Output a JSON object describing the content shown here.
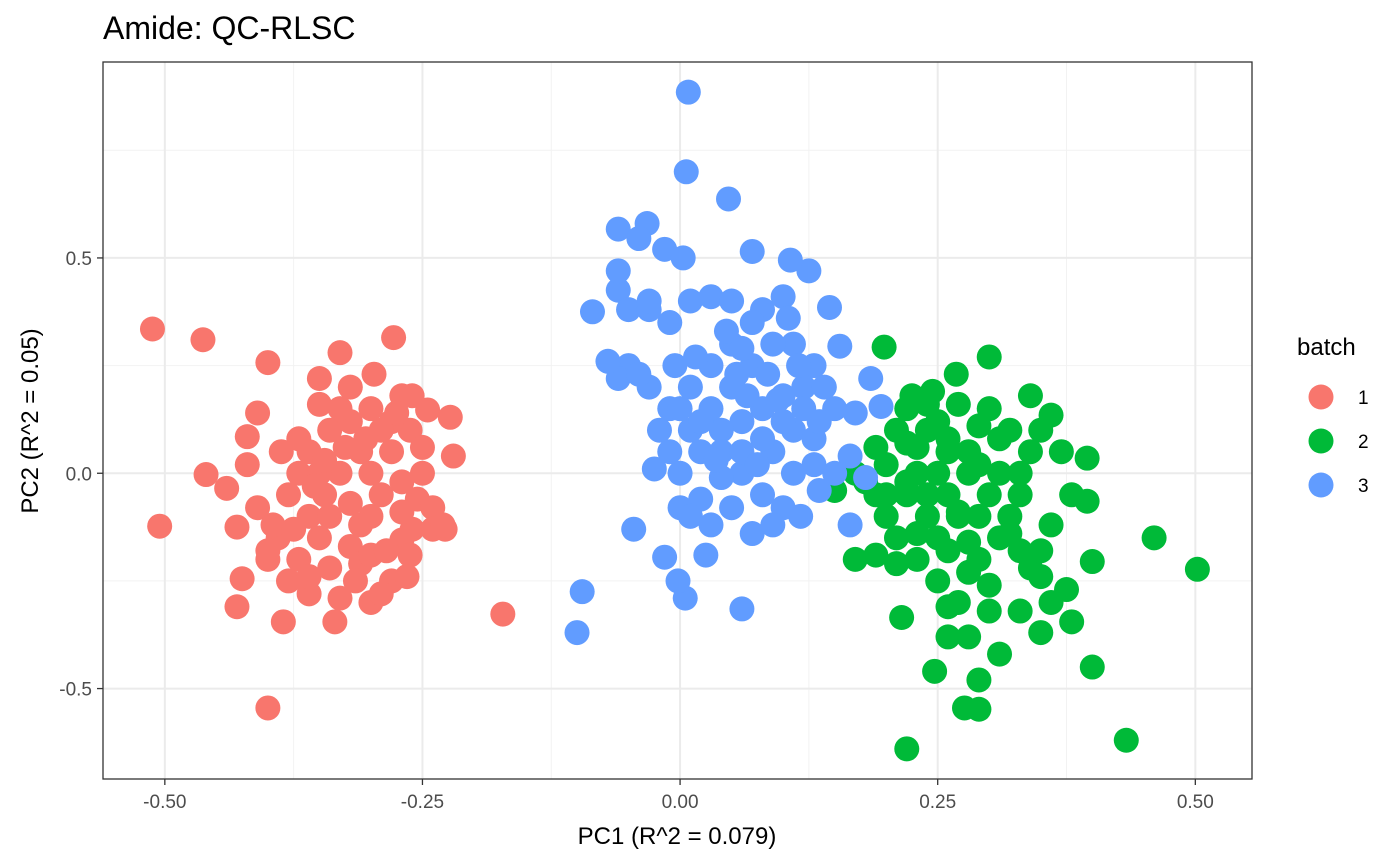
{
  "chart_data": {
    "type": "scatter",
    "title": "Amide: QC-RLSC",
    "xlabel": "PC1 (R^2 = 0.079)",
    "ylabel": "PC2 (R^2 = 0.05)",
    "xlim": [
      -0.56,
      0.555
    ],
    "ylim": [
      -0.71,
      0.955
    ],
    "x_ticks": [
      {
        "value": -0.5,
        "label": "-0.50"
      },
      {
        "value": -0.25,
        "label": "-0.25"
      },
      {
        "value": 0.0,
        "label": "0.00"
      },
      {
        "value": 0.25,
        "label": "0.25"
      },
      {
        "value": 0.5,
        "label": "0.50"
      }
    ],
    "y_ticks": [
      {
        "value": -0.5,
        "label": "-0.5"
      },
      {
        "value": 0.0,
        "label": "0.0"
      },
      {
        "value": 0.5,
        "label": "0.5"
      }
    ],
    "grid": true,
    "legend": {
      "title": "batch",
      "placement": "right"
    },
    "series": [
      {
        "name": "1",
        "color": "#F8766D",
        "points": [
          [
            -0.512,
            0.335
          ],
          [
            -0.463,
            0.31
          ],
          [
            -0.4,
            0.257
          ],
          [
            -0.505,
            -0.123
          ],
          [
            -0.46,
            -0.003
          ],
          [
            -0.4,
            -0.545
          ],
          [
            -0.172,
            -0.327
          ],
          [
            -0.387,
            0.05
          ],
          [
            -0.35,
            0.16
          ],
          [
            -0.33,
            0.28
          ],
          [
            -0.32,
            0.2
          ],
          [
            -0.297,
            0.23
          ],
          [
            -0.278,
            0.315
          ],
          [
            -0.27,
            0.18
          ],
          [
            -0.262,
            0.1
          ],
          [
            -0.245,
            0.147
          ],
          [
            -0.223,
            0.13
          ],
          [
            -0.228,
            -0.13
          ],
          [
            -0.22,
            0.04
          ],
          [
            -0.27,
            -0.155
          ],
          [
            -0.255,
            -0.06
          ],
          [
            -0.262,
            -0.19
          ],
          [
            -0.28,
            -0.25
          ],
          [
            -0.3,
            -0.3
          ],
          [
            -0.335,
            -0.345
          ],
          [
            -0.385,
            -0.345
          ],
          [
            -0.43,
            -0.31
          ],
          [
            -0.425,
            -0.245
          ],
          [
            -0.44,
            -0.035
          ],
          [
            -0.43,
            -0.125
          ],
          [
            -0.42,
            0.02
          ],
          [
            -0.41,
            0.14
          ],
          [
            -0.42,
            0.085
          ],
          [
            -0.37,
            -0.2
          ],
          [
            -0.36,
            -0.1
          ],
          [
            -0.345,
            -0.05
          ],
          [
            -0.33,
            0.0
          ],
          [
            -0.31,
            0.05
          ],
          [
            -0.3,
            -0.1
          ],
          [
            -0.29,
            -0.05
          ],
          [
            -0.36,
            0.05
          ],
          [
            -0.35,
            -0.15
          ],
          [
            -0.34,
            -0.22
          ],
          [
            -0.32,
            -0.17
          ],
          [
            -0.34,
            0.1
          ],
          [
            -0.32,
            0.12
          ],
          [
            -0.3,
            0.0
          ],
          [
            -0.28,
            0.05
          ],
          [
            -0.27,
            -0.02
          ],
          [
            -0.26,
            -0.13
          ],
          [
            -0.38,
            -0.05
          ],
          [
            -0.39,
            -0.15
          ],
          [
            -0.37,
            0.0
          ],
          [
            -0.31,
            -0.21
          ],
          [
            -0.29,
            -0.28
          ],
          [
            -0.25,
            0.0
          ],
          [
            -0.24,
            -0.08
          ],
          [
            -0.38,
            -0.25
          ],
          [
            -0.36,
            -0.28
          ],
          [
            -0.4,
            -0.2
          ],
          [
            -0.41,
            -0.08
          ],
          [
            -0.35,
            0.22
          ],
          [
            -0.33,
            0.15
          ],
          [
            -0.3,
            0.15
          ],
          [
            -0.28,
            0.12
          ],
          [
            -0.25,
            0.06
          ],
          [
            -0.24,
            -0.13
          ],
          [
            -0.3,
            -0.19
          ],
          [
            -0.32,
            -0.07
          ],
          [
            -0.33,
            -0.29
          ],
          [
            -0.27,
            -0.09
          ],
          [
            -0.35,
            0.0
          ],
          [
            -0.34,
            -0.1
          ],
          [
            -0.29,
            0.1
          ],
          [
            -0.26,
            0.18
          ],
          [
            -0.395,
            -0.12
          ],
          [
            -0.37,
            0.08
          ],
          [
            -0.4,
            -0.18
          ],
          [
            -0.36,
            -0.24
          ],
          [
            -0.31,
            -0.12
          ],
          [
            -0.23,
            -0.12
          ],
          [
            -0.265,
            -0.24
          ],
          [
            -0.285,
            -0.18
          ],
          [
            -0.315,
            -0.25
          ],
          [
            -0.325,
            0.06
          ],
          [
            -0.355,
            -0.03
          ],
          [
            -0.375,
            -0.13
          ],
          [
            -0.345,
            0.03
          ],
          [
            -0.305,
            0.08
          ],
          [
            -0.275,
            0.14
          ]
        ]
      },
      {
        "name": "2",
        "color": "#00BA38",
        "points": [
          [
            0.198,
            0.293
          ],
          [
            0.46,
            -0.15
          ],
          [
            0.502,
            -0.223
          ],
          [
            0.433,
            -0.62
          ],
          [
            0.22,
            -0.64
          ],
          [
            0.247,
            -0.46
          ],
          [
            0.276,
            -0.545
          ],
          [
            0.29,
            -0.548
          ],
          [
            0.4,
            -0.45
          ],
          [
            0.38,
            -0.345
          ],
          [
            0.4,
            -0.205
          ],
          [
            0.395,
            -0.065
          ],
          [
            0.395,
            0.035
          ],
          [
            0.36,
            0.135
          ],
          [
            0.34,
            0.18
          ],
          [
            0.3,
            0.27
          ],
          [
            0.268,
            0.23
          ],
          [
            0.245,
            0.19
          ],
          [
            0.225,
            0.18
          ],
          [
            0.22,
            0.15
          ],
          [
            0.215,
            -0.335
          ],
          [
            0.26,
            -0.38
          ],
          [
            0.29,
            -0.48
          ],
          [
            0.31,
            -0.42
          ],
          [
            0.35,
            -0.37
          ],
          [
            0.36,
            -0.3
          ],
          [
            0.375,
            -0.27
          ],
          [
            0.35,
            -0.24
          ],
          [
            0.33,
            -0.18
          ],
          [
            0.32,
            -0.1
          ],
          [
            0.3,
            -0.05
          ],
          [
            0.28,
            0.0
          ],
          [
            0.26,
            0.05
          ],
          [
            0.24,
            0.1
          ],
          [
            0.22,
            0.07
          ],
          [
            0.2,
            0.02
          ],
          [
            0.19,
            -0.05
          ],
          [
            0.2,
            -0.1
          ],
          [
            0.21,
            -0.15
          ],
          [
            0.23,
            -0.2
          ],
          [
            0.25,
            -0.25
          ],
          [
            0.27,
            -0.3
          ],
          [
            0.29,
            -0.2
          ],
          [
            0.31,
            -0.15
          ],
          [
            0.33,
            -0.05
          ],
          [
            0.34,
            0.05
          ],
          [
            0.32,
            0.1
          ],
          [
            0.3,
            0.15
          ],
          [
            0.28,
            0.05
          ],
          [
            0.26,
            -0.05
          ],
          [
            0.24,
            -0.1
          ],
          [
            0.22,
            -0.05
          ],
          [
            0.23,
            0.0
          ],
          [
            0.25,
            0.0
          ],
          [
            0.27,
            -0.1
          ],
          [
            0.29,
            -0.1
          ],
          [
            0.31,
            0.0
          ],
          [
            0.33,
            0.0
          ],
          [
            0.35,
            0.1
          ],
          [
            0.37,
            0.05
          ],
          [
            0.38,
            -0.05
          ],
          [
            0.36,
            -0.12
          ],
          [
            0.34,
            -0.22
          ],
          [
            0.3,
            -0.26
          ],
          [
            0.28,
            -0.23
          ],
          [
            0.26,
            -0.18
          ],
          [
            0.24,
            -0.05
          ],
          [
            0.22,
            -0.02
          ],
          [
            0.21,
            0.1
          ],
          [
            0.19,
            0.06
          ],
          [
            0.17,
            0.0
          ],
          [
            0.18,
            -0.02
          ],
          [
            0.15,
            -0.04
          ],
          [
            0.17,
            -0.2
          ],
          [
            0.19,
            -0.19
          ],
          [
            0.26,
            -0.31
          ],
          [
            0.28,
            -0.38
          ],
          [
            0.27,
            -0.09
          ],
          [
            0.29,
            0.02
          ],
          [
            0.31,
            0.08
          ],
          [
            0.25,
            0.12
          ],
          [
            0.23,
            -0.14
          ],
          [
            0.32,
            -0.14
          ],
          [
            0.35,
            -0.18
          ],
          [
            0.28,
            -0.16
          ],
          [
            0.26,
            0.08
          ],
          [
            0.24,
            0.16
          ],
          [
            0.2,
            -0.05
          ],
          [
            0.3,
            -0.32
          ],
          [
            0.33,
            -0.32
          ],
          [
            0.27,
            0.16
          ],
          [
            0.29,
            0.11
          ],
          [
            0.23,
            0.06
          ],
          [
            0.21,
            -0.21
          ],
          [
            0.25,
            -0.15
          ]
        ]
      },
      {
        "name": "3",
        "color": "#619CFF",
        "points": [
          [
            0.008,
            0.885
          ],
          [
            0.006,
            0.7
          ],
          [
            0.047,
            0.637
          ],
          [
            -0.032,
            0.58
          ],
          [
            -0.06,
            0.567
          ],
          [
            -0.04,
            0.545
          ],
          [
            -0.015,
            0.52
          ],
          [
            0.003,
            0.5
          ],
          [
            0.07,
            0.515
          ],
          [
            0.107,
            0.495
          ],
          [
            0.125,
            0.47
          ],
          [
            0.145,
            0.385
          ],
          [
            0.155,
            0.295
          ],
          [
            0.185,
            0.22
          ],
          [
            0.195,
            0.155
          ],
          [
            0.17,
            0.14
          ],
          [
            0.165,
            0.04
          ],
          [
            0.18,
            -0.01
          ],
          [
            0.165,
            -0.12
          ],
          [
            0.135,
            -0.04
          ],
          [
            0.117,
            -0.1
          ],
          [
            0.06,
            -0.315
          ],
          [
            0.005,
            -0.29
          ],
          [
            -0.002,
            -0.25
          ],
          [
            -0.015,
            -0.195
          ],
          [
            -0.045,
            -0.13
          ],
          [
            -0.095,
            -0.275
          ],
          [
            -0.1,
            -0.37
          ],
          [
            -0.085,
            0.375
          ],
          [
            -0.06,
            0.425
          ],
          [
            -0.06,
            0.47
          ],
          [
            -0.05,
            0.38
          ],
          [
            -0.03,
            0.38
          ],
          [
            -0.01,
            0.35
          ],
          [
            0.01,
            0.4
          ],
          [
            0.03,
            0.41
          ],
          [
            0.05,
            0.4
          ],
          [
            0.08,
            0.38
          ],
          [
            0.1,
            0.41
          ],
          [
            0.11,
            0.3
          ],
          [
            0.13,
            0.25
          ],
          [
            0.12,
            0.2
          ],
          [
            0.1,
            0.18
          ],
          [
            0.08,
            0.15
          ],
          [
            0.06,
            0.12
          ],
          [
            0.04,
            0.1
          ],
          [
            0.02,
            0.05
          ],
          [
            0.0,
            0.0
          ],
          [
            -0.01,
            0.05
          ],
          [
            0.01,
            0.1
          ],
          [
            0.03,
            0.15
          ],
          [
            0.05,
            0.2
          ],
          [
            0.07,
            0.25
          ],
          [
            0.09,
            0.3
          ],
          [
            0.07,
            0.35
          ],
          [
            0.05,
            0.3
          ],
          [
            0.03,
            0.25
          ],
          [
            0.01,
            0.2
          ],
          [
            -0.01,
            0.15
          ],
          [
            -0.03,
            0.2
          ],
          [
            -0.05,
            0.25
          ],
          [
            -0.06,
            0.22
          ],
          [
            -0.07,
            0.26
          ],
          [
            -0.04,
            0.23
          ],
          [
            0.0,
            0.15
          ],
          [
            0.02,
            0.12
          ],
          [
            0.04,
            0.05
          ],
          [
            0.06,
            0.0
          ],
          [
            0.08,
            -0.05
          ],
          [
            0.1,
            -0.08
          ],
          [
            0.09,
            0.05
          ],
          [
            0.11,
            0.1
          ],
          [
            0.13,
            0.08
          ],
          [
            0.15,
            0.15
          ],
          [
            0.14,
            0.2
          ],
          [
            0.12,
            0.15
          ],
          [
            0.1,
            0.12
          ],
          [
            0.08,
            0.08
          ],
          [
            0.06,
            0.05
          ],
          [
            0.04,
            -0.01
          ],
          [
            0.02,
            -0.06
          ],
          [
            0.0,
            -0.08
          ],
          [
            0.01,
            -0.1
          ],
          [
            0.03,
            -0.12
          ],
          [
            0.05,
            -0.08
          ],
          [
            0.07,
            -0.14
          ],
          [
            0.09,
            -0.12
          ],
          [
            0.11,
            0.0
          ],
          [
            0.13,
            0.02
          ],
          [
            0.15,
            0.0
          ],
          [
            0.025,
            -0.19
          ],
          [
            -0.03,
            0.4
          ],
          [
            0.06,
            0.29
          ],
          [
            0.085,
            0.23
          ],
          [
            0.105,
            0.36
          ],
          [
            0.045,
            0.33
          ],
          [
            0.015,
            0.27
          ],
          [
            -0.005,
            0.25
          ],
          [
            0.065,
            0.18
          ],
          [
            0.095,
            0.17
          ],
          [
            0.115,
            0.25
          ],
          [
            0.135,
            0.12
          ],
          [
            0.035,
            0.03
          ],
          [
            0.055,
            0.23
          ],
          [
            0.075,
            0.02
          ],
          [
            -0.02,
            0.1
          ],
          [
            -0.025,
            0.01
          ]
        ]
      }
    ]
  }
}
